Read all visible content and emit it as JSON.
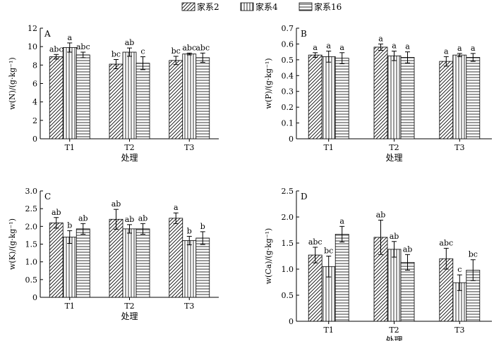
{
  "legend": {
    "items": [
      "家系2",
      "家系4",
      "家系16"
    ]
  },
  "chart_data": [
    {
      "type": "bar",
      "panel": "A",
      "ylabel": "w(N)/(g·kg⁻¹)",
      "xlabel": "处理",
      "categories": [
        "T1",
        "T2",
        "T3"
      ],
      "ylim": [
        0,
        12
      ],
      "yticks": [
        0,
        2,
        4,
        6,
        8,
        10,
        12
      ],
      "series": [
        {
          "name": "家系2",
          "values": [
            8.9,
            8.1,
            8.5
          ],
          "errors": [
            0.25,
            0.5,
            0.45
          ],
          "letters": [
            "abc",
            "bc",
            "bc"
          ]
        },
        {
          "name": "家系4",
          "values": [
            9.9,
            9.4,
            9.2
          ],
          "errors": [
            0.5,
            0.45,
            0.1
          ],
          "letters": [
            "a",
            "ab",
            "abc"
          ]
        },
        {
          "name": "家系16",
          "values": [
            9.1,
            8.2,
            8.8
          ],
          "errors": [
            0.3,
            0.7,
            0.5
          ],
          "letters": [
            "abc",
            "c",
            "abc"
          ]
        }
      ]
    },
    {
      "type": "bar",
      "panel": "B",
      "ylabel": "w(P)/(g·kg⁻¹)",
      "xlabel": "处理",
      "categories": [
        "T1",
        "T2",
        "T3"
      ],
      "ylim": [
        0,
        0.7
      ],
      "yticks": [
        "0",
        "0.1",
        "0.2",
        "0.3",
        "0.4",
        "0.5",
        "0.6",
        "0.7"
      ],
      "series": [
        {
          "name": "家系2",
          "values": [
            0.53,
            0.58,
            0.49
          ],
          "errors": [
            0.015,
            0.02,
            0.03
          ],
          "letters": [
            "a",
            "a",
            "a"
          ]
        },
        {
          "name": "家系4",
          "values": [
            0.52,
            0.525,
            0.53
          ],
          "errors": [
            0.035,
            0.03,
            0.01
          ],
          "letters": [
            "a",
            "a",
            "a"
          ]
        },
        {
          "name": "家系16",
          "values": [
            0.51,
            0.515,
            0.515
          ],
          "errors": [
            0.035,
            0.035,
            0.025
          ],
          "letters": [
            "a",
            "a",
            "a"
          ]
        }
      ]
    },
    {
      "type": "bar",
      "panel": "C",
      "ylabel": "w(K)/(g·kg⁻¹)",
      "xlabel": "处理",
      "categories": [
        "T1",
        "T2",
        "T3"
      ],
      "ylim": [
        0,
        3.0
      ],
      "yticks": [
        "0",
        "0.5",
        "1.0",
        "1.5",
        "2.0",
        "2.5",
        "3.0"
      ],
      "series": [
        {
          "name": "家系2",
          "values": [
            2.1,
            2.2,
            2.23
          ],
          "errors": [
            0.15,
            0.28,
            0.15
          ],
          "letters": [
            "ab",
            "ab",
            "a"
          ]
        },
        {
          "name": "家系4",
          "values": [
            1.7,
            1.93,
            1.6
          ],
          "errors": [
            0.18,
            0.12,
            0.12
          ],
          "letters": [
            "b",
            "ab",
            "b"
          ]
        },
        {
          "name": "家系16",
          "values": [
            1.93,
            1.93,
            1.67
          ],
          "errors": [
            0.15,
            0.15,
            0.18
          ],
          "letters": [
            "ab",
            "ab",
            "b"
          ]
        }
      ]
    },
    {
      "type": "bar",
      "panel": "D",
      "ylabel": "w(Ca)/(g·kg⁻¹)",
      "xlabel": "处理",
      "categories": [
        "T1",
        "T2",
        "T3"
      ],
      "ylim": [
        0,
        2.5
      ],
      "yticks": [
        "0",
        "0.5",
        "1.0",
        "1.5",
        "2.0",
        "2.5"
      ],
      "series": [
        {
          "name": "家系2",
          "values": [
            1.27,
            1.61,
            1.2
          ],
          "errors": [
            0.15,
            0.33,
            0.2
          ],
          "letters": [
            "abc",
            "ab",
            "abc"
          ]
        },
        {
          "name": "家系4",
          "values": [
            1.05,
            1.38,
            0.74
          ],
          "errors": [
            0.2,
            0.15,
            0.15
          ],
          "letters": [
            "bc",
            "ab",
            "c"
          ]
        },
        {
          "name": "家系16",
          "values": [
            1.67,
            1.13,
            0.98
          ],
          "errors": [
            0.15,
            0.15,
            0.2
          ],
          "letters": [
            "a",
            "ab",
            "bc"
          ]
        }
      ]
    }
  ]
}
